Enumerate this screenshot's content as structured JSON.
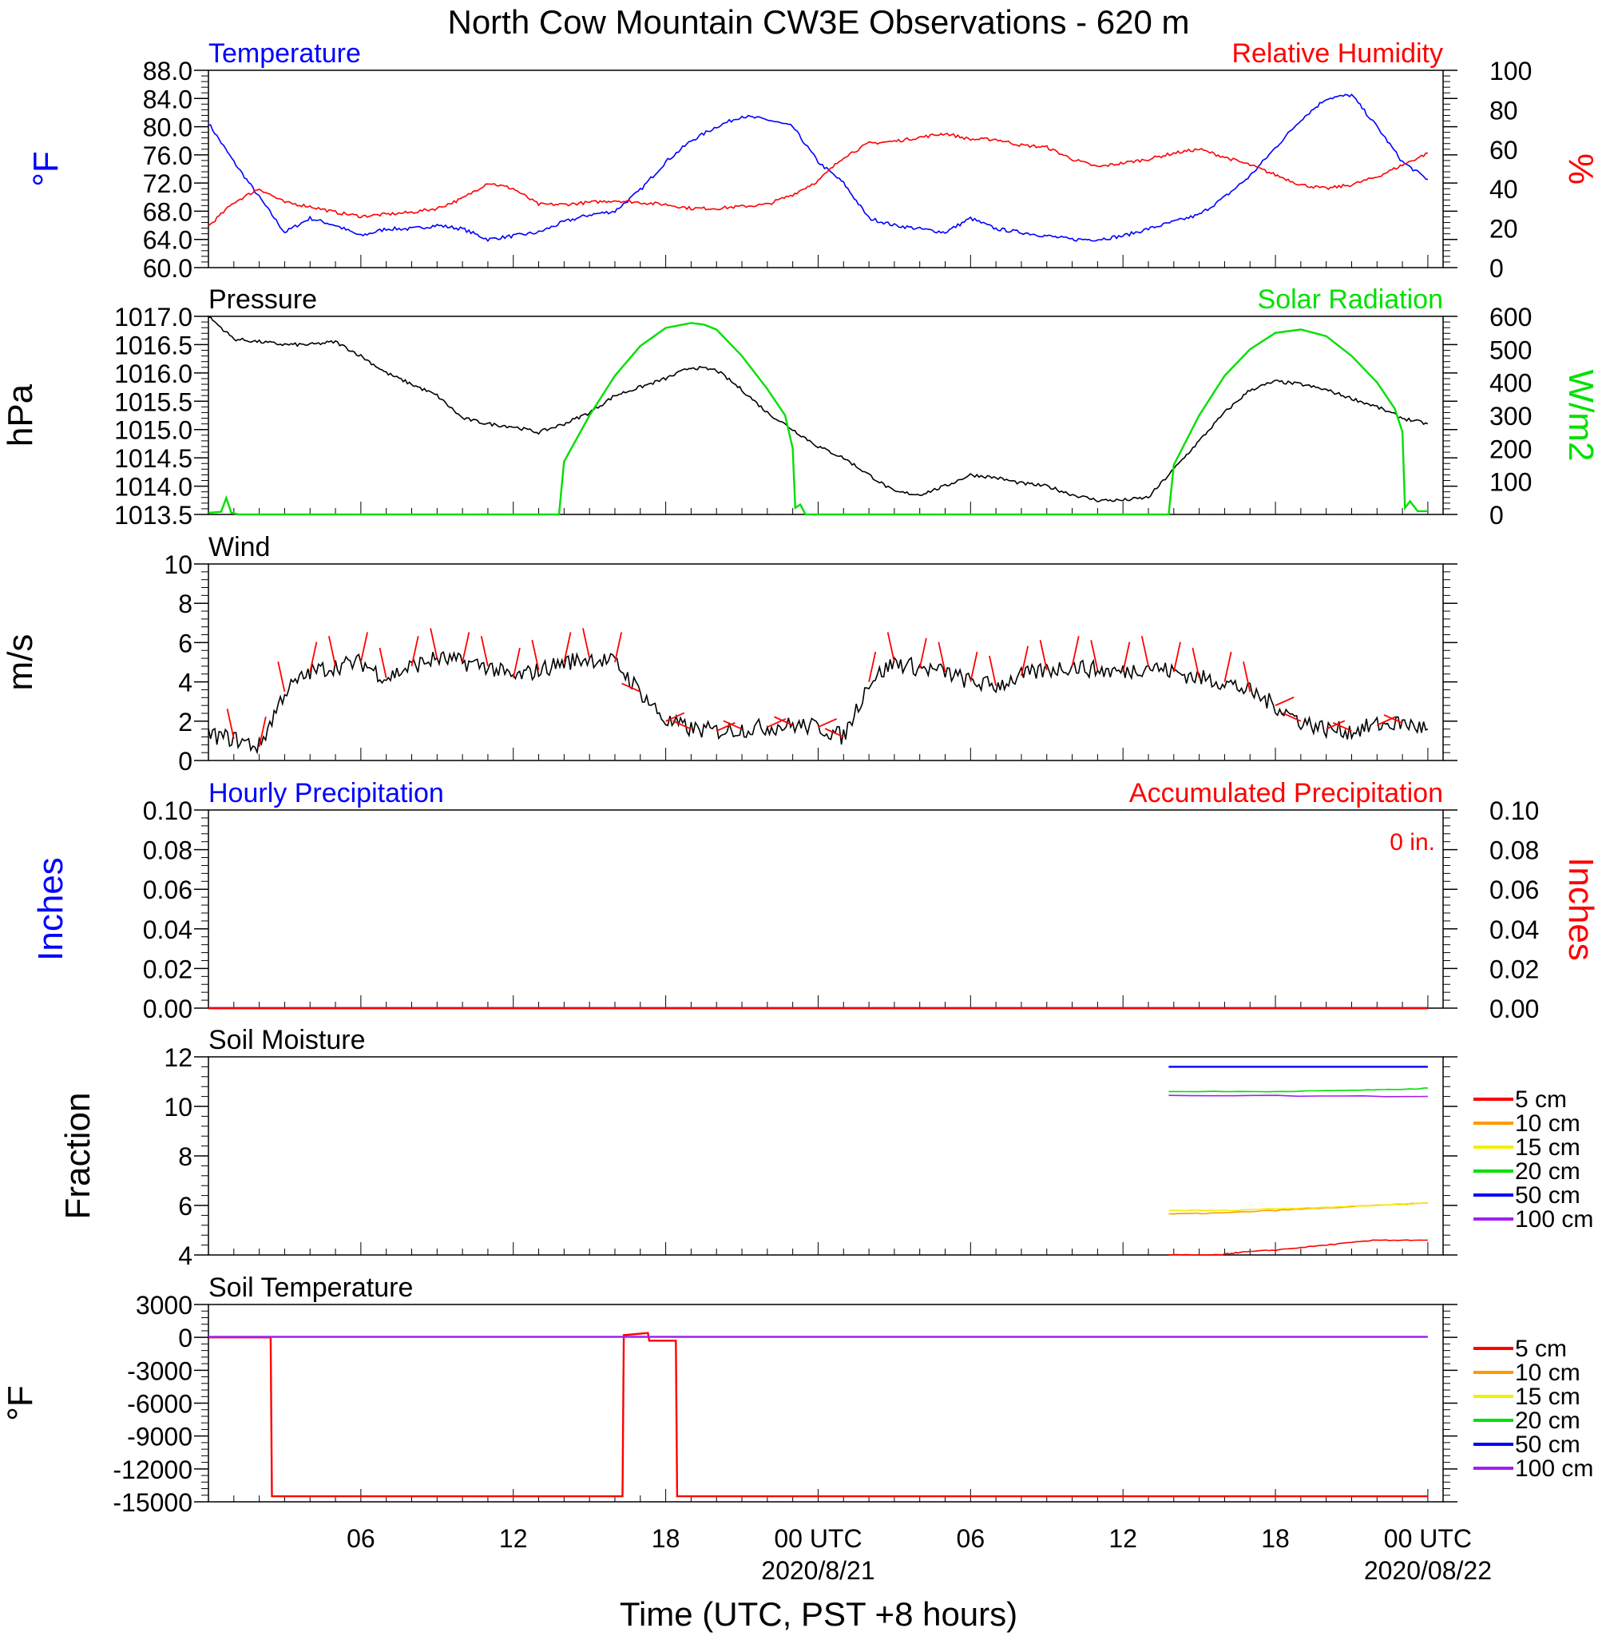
{
  "title": "North Cow Mountain CW3E Observations - 620 m",
  "xlabel": "Time (UTC, PST +8 hours)",
  "x_axis": {
    "ticks": [
      "06",
      "12",
      "18",
      "00 UTC",
      "06",
      "12",
      "18",
      "00 UTC"
    ],
    "date_labels": [
      "2020/8/21",
      "2020/08/22"
    ]
  },
  "colors": {
    "blue": "#0000ff",
    "red": "#ff0000",
    "green": "#00e000",
    "black": "#000000",
    "orange": "#ff9900",
    "yellow": "#f0f000",
    "purple": "#a020f0"
  },
  "chart_data": [
    {
      "type": "line",
      "left_title": "Temperature",
      "right_title": "Relative Humidity",
      "ylabel": "°F",
      "ylabel_right": "%",
      "ylim": [
        60,
        88
      ],
      "ylim_right": [
        0,
        100
      ],
      "yticks": [
        "88.0",
        "84.0",
        "80.0",
        "76.0",
        "72.0",
        "68.0",
        "64.0",
        "60.0"
      ],
      "yticks_right": [
        "100",
        "80",
        "60",
        "40",
        "20",
        "0"
      ],
      "x_hours": [
        0,
        1,
        2,
        3,
        4,
        5,
        6,
        7,
        8,
        9,
        10,
        11,
        12,
        13,
        14,
        15,
        16,
        17,
        18,
        19,
        20,
        21,
        22,
        23,
        24,
        25,
        26,
        27,
        28,
        29,
        30,
        31,
        32,
        33,
        34,
        35,
        36,
        37,
        38,
        39,
        40,
        41,
        42,
        43,
        44,
        45,
        46,
        47,
        48
      ],
      "series": [
        {
          "name": "Temperature",
          "axis": "left",
          "color": "blue",
          "values": [
            80.5,
            75,
            70,
            65,
            67,
            66,
            64.5,
            65.5,
            65.5,
            66,
            65.5,
            64,
            64.5,
            65,
            66.5,
            67.5,
            68,
            71,
            75,
            78,
            80,
            81.5,
            81,
            80,
            75,
            72,
            67,
            66,
            65.5,
            65,
            67,
            65.5,
            65,
            64.5,
            64,
            64,
            64.5,
            65.5,
            66.5,
            67.5,
            70,
            73,
            77,
            81,
            84,
            84.5,
            80,
            75,
            72.5
          ]
        },
        {
          "name": "Relative Humidity",
          "axis": "right",
          "color": "red",
          "values": [
            21,
            33,
            40,
            33,
            31,
            28,
            26,
            27,
            28,
            30,
            35,
            43,
            40,
            32,
            32,
            33,
            34,
            33,
            32,
            30,
            30,
            31,
            32,
            37,
            44,
            56,
            63,
            64,
            66,
            68,
            65,
            65,
            62,
            61,
            55,
            51,
            53,
            55,
            58,
            60,
            56,
            52,
            47,
            42,
            40,
            42,
            46,
            52,
            58
          ]
        }
      ]
    },
    {
      "type": "line",
      "left_title": "Pressure",
      "right_title": "Solar Radiation",
      "ylabel": "hPa",
      "ylabel_right": "W/m2",
      "ylim": [
        1013.5,
        1017.0
      ],
      "ylim_right": [
        0,
        600
      ],
      "yticks": [
        "1017.0",
        "1016.5",
        "1016.0",
        "1015.5",
        "1015.0",
        "1014.5",
        "1014.0",
        "1013.5"
      ],
      "yticks_right": [
        "600",
        "500",
        "400",
        "300",
        "200",
        "100",
        "0"
      ],
      "x_hours": [
        0,
        1,
        2,
        3,
        4,
        5,
        6,
        7,
        8,
        9,
        10,
        11,
        12,
        13,
        14,
        15,
        16,
        17,
        18,
        19,
        20,
        21,
        22,
        23,
        24,
        25,
        26,
        27,
        28,
        29,
        30,
        31,
        32,
        33,
        34,
        35,
        36,
        37,
        38,
        39,
        40,
        41,
        42,
        43,
        44,
        45,
        46,
        47,
        48
      ],
      "series": [
        {
          "name": "Pressure",
          "axis": "left",
          "color": "black",
          "values": [
            1017.0,
            1016.6,
            1016.55,
            1016.5,
            1016.5,
            1016.55,
            1016.3,
            1016.0,
            1015.8,
            1015.6,
            1015.2,
            1015.1,
            1015.05,
            1014.95,
            1015.1,
            1015.3,
            1015.6,
            1015.75,
            1015.9,
            1016.1,
            1016.05,
            1015.7,
            1015.3,
            1015.0,
            1014.7,
            1014.5,
            1014.2,
            1013.9,
            1013.85,
            1014.0,
            1014.2,
            1014.15,
            1014.05,
            1014.0,
            1013.85,
            1013.75,
            1013.75,
            1013.8,
            1014.3,
            1014.8,
            1015.3,
            1015.7,
            1015.85,
            1015.8,
            1015.7,
            1015.55,
            1015.4,
            1015.2,
            1015.1
          ]
        },
        {
          "name": "Solar Radiation",
          "axis": "right",
          "color": "green",
          "x_hours": [
            0,
            0.5,
            0.7,
            0.9,
            1.2,
            13.8,
            14.0,
            15,
            16,
            17,
            18,
            19,
            19.5,
            20,
            21,
            22,
            22.7,
            23.0,
            23.1,
            23.3,
            23.5,
            24,
            37.8,
            38.0,
            39,
            40,
            41,
            42,
            43,
            44,
            45,
            46,
            46.7,
            47.0,
            47.1,
            47.3,
            47.6,
            48
          ],
          "values": [
            5,
            8,
            50,
            5,
            0,
            0,
            160,
            300,
            420,
            510,
            565,
            580,
            575,
            560,
            480,
            380,
            300,
            200,
            20,
            30,
            0,
            0,
            0,
            150,
            300,
            420,
            500,
            550,
            560,
            540,
            480,
            400,
            320,
            250,
            20,
            40,
            10,
            10
          ]
        }
      ]
    },
    {
      "type": "line",
      "left_title": "Wind",
      "ylabel": "m/s",
      "ylim": [
        0,
        10
      ],
      "yticks": [
        "10",
        "8",
        "6",
        "4",
        "2",
        "0"
      ],
      "x_hours": [
        0,
        1,
        2,
        3,
        4,
        5,
        6,
        7,
        8,
        9,
        10,
        11,
        12,
        13,
        14,
        15,
        16,
        17,
        18,
        19,
        20,
        21,
        22,
        23,
        24,
        25,
        26,
        27,
        28,
        29,
        30,
        31,
        32,
        33,
        34,
        35,
        36,
        37,
        38,
        39,
        40,
        41,
        42,
        43,
        44,
        45,
        46,
        47,
        48
      ],
      "series": [
        {
          "name": "Wind",
          "axis": "left",
          "color": "black",
          "values": [
            1.3,
            1.1,
            0.7,
            3.5,
            4.5,
            4.8,
            5.0,
            4.2,
            4.8,
            5.2,
            5.0,
            4.8,
            4.2,
            4.6,
            5.0,
            5.2,
            5.0,
            3.5,
            2.0,
            1.6,
            1.5,
            1.6,
            1.7,
            1.8,
            1.7,
            1.2,
            4.0,
            5.0,
            4.7,
            4.5,
            4.0,
            3.8,
            4.3,
            4.6,
            4.8,
            4.6,
            4.5,
            4.8,
            4.5,
            4.2,
            4.0,
            3.5,
            2.8,
            2.0,
            1.6,
            1.5,
            1.8,
            1.9,
            1.6
          ]
        }
      ]
    },
    {
      "type": "line",
      "left_title": "Hourly Precipitation",
      "right_title": "Accumulated Precipitation",
      "annotation": "0 in.",
      "ylabel": "Inches",
      "ylabel_right": "Inches",
      "ylim": [
        0,
        0.1
      ],
      "ylim_right": [
        0,
        0.1
      ],
      "yticks": [
        "0.10",
        "0.08",
        "0.06",
        "0.04",
        "0.02",
        "0.00"
      ],
      "yticks_right": [
        "0.10",
        "0.08",
        "0.06",
        "0.04",
        "0.02",
        "0.00"
      ],
      "x_hours": [
        0,
        48
      ],
      "series": [
        {
          "name": "Hourly Precipitation",
          "axis": "left",
          "color": "blue",
          "values": [
            0,
            0
          ]
        },
        {
          "name": "Accumulated Precipitation",
          "axis": "right",
          "color": "red",
          "values": [
            0,
            0
          ]
        }
      ]
    },
    {
      "type": "line",
      "left_title": "Soil Moisture",
      "ylabel": "Fraction",
      "ylim": [
        4,
        12
      ],
      "yticks": [
        "12",
        "10",
        "8",
        "6",
        "4"
      ],
      "legend": [
        "5 cm",
        "10 cm",
        "15 cm",
        "20 cm",
        "50 cm",
        "100 cm"
      ],
      "series": [
        {
          "name": "5 cm",
          "color": "red",
          "x_hours": [
            37.8,
            39.8,
            40.5,
            42.0,
            44.0,
            46.0,
            48.0
          ],
          "values": [
            4.0,
            4.0,
            4.1,
            4.2,
            4.4,
            4.6,
            4.6
          ]
        },
        {
          "name": "10 cm",
          "color": "orange",
          "x_hours": [
            37.8,
            40.0,
            43.0,
            46.0,
            48.0
          ],
          "values": [
            5.65,
            5.7,
            5.85,
            6.0,
            6.1
          ]
        },
        {
          "name": "15 cm",
          "color": "yellow",
          "x_hours": [
            37.8,
            40.0,
            43.0,
            46.0,
            48.0
          ],
          "values": [
            5.8,
            5.8,
            5.9,
            6.0,
            6.1
          ]
        },
        {
          "name": "20 cm",
          "color": "green",
          "x_hours": [
            37.8,
            42.0,
            45.0,
            47.5,
            48.0
          ],
          "values": [
            10.6,
            10.6,
            10.65,
            10.7,
            10.75
          ]
        },
        {
          "name": "50 cm",
          "color": "blue",
          "x_hours": [
            37.8,
            48.0
          ],
          "values": [
            11.6,
            11.6
          ]
        },
        {
          "name": "100 cm",
          "color": "purple",
          "x_hours": [
            37.8,
            48.0
          ],
          "values": [
            10.45,
            10.4
          ]
        }
      ]
    },
    {
      "type": "line",
      "left_title": "Soil Temperature",
      "ylabel": "°F",
      "ylim": [
        -15000,
        3000
      ],
      "yticks": [
        "3000",
        "0",
        "-3000",
        "-6000",
        "-9000",
        "-12000",
        "-15000"
      ],
      "legend": [
        "5 cm",
        "10 cm",
        "15 cm",
        "20 cm",
        "50 cm",
        "100 cm"
      ],
      "series": [
        {
          "name": "5 cm",
          "color": "red",
          "x_hours": [
            0,
            2.45,
            2.5,
            16.3,
            16.35,
            17.3,
            17.35,
            18.4,
            18.45,
            48.0
          ],
          "values": [
            0,
            0,
            -14500,
            -14500,
            200,
            400,
            -300,
            -300,
            -14500,
            -14500
          ]
        },
        {
          "name": "100 cm",
          "color": "purple",
          "x_hours": [
            0,
            48
          ],
          "values": [
            50,
            50
          ]
        }
      ]
    }
  ]
}
